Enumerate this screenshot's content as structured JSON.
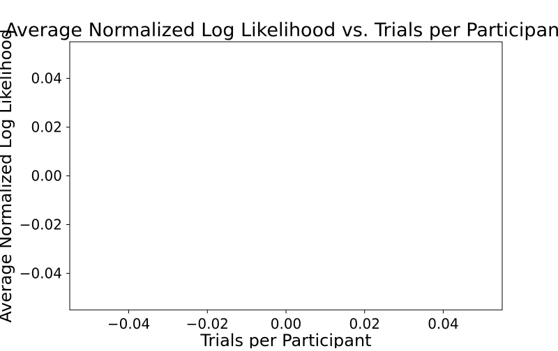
{
  "chart_data": {
    "type": "line",
    "title": "Average Normalized Log Likelihood vs. Trials per Participant",
    "xlabel": "Trials per Participant",
    "ylabel": "Average Normalized Log Likelihood",
    "xlim": [
      -0.055,
      0.055
    ],
    "ylim": [
      -0.055,
      0.055
    ],
    "x_ticks": [
      -0.04,
      -0.02,
      0.0,
      0.02,
      0.04
    ],
    "x_tick_labels": [
      "−0.04",
      "−0.02",
      "0.00",
      "0.02",
      "0.04"
    ],
    "y_ticks": [
      -0.04,
      -0.02,
      0.0,
      0.02,
      0.04
    ],
    "y_tick_labels": [
      "−0.04",
      "−0.02",
      "0.00",
      "0.02",
      "0.04"
    ],
    "series": [],
    "grid": false,
    "legend": "none",
    "colors": {
      "axes": "#000000",
      "background": "#ffffff"
    }
  }
}
